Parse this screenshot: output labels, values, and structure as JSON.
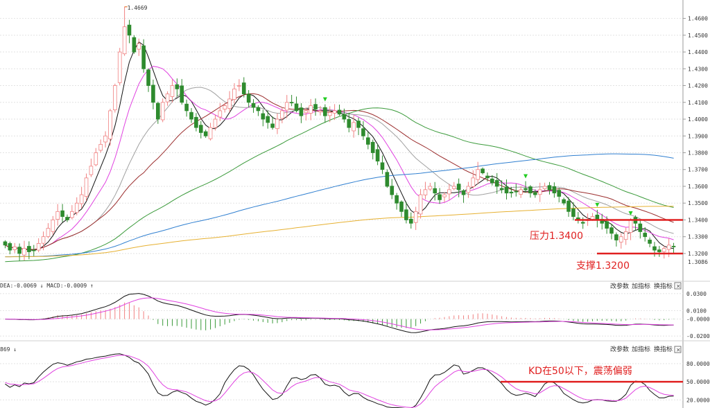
{
  "colors": {
    "up": "#f08080",
    "down": "#2e8b2e",
    "ma5": "#111111",
    "ma10": "#e040e0",
    "ma20": "#a0a0a0",
    "ma30": "#9b2d2d",
    "ma60": "#3a9a3a",
    "ma120": "#2f7fd0",
    "ma250": "#e6b030",
    "resistance_line": "#e02020",
    "grid": "#e2e2e2",
    "macd_pos": "#f08080",
    "macd_neg": "#3a9a3a",
    "dif": "#111111",
    "dea": "#e040e0",
    "k": "#111111",
    "d": "#e040e0",
    "annotation": "#e02020",
    "marker_arrow": "#22cc22",
    "high_label": "#e05a00"
  },
  "icons": {
    "settings_close": "close-box-icon",
    "dea_direction": "down-arrow-icon",
    "macd_direction": "up-arrow-icon",
    "kd_direction": "down-arrow-icon",
    "signal_marker": "green-down-arrow-icon"
  },
  "main": {
    "high_label": "1.4669",
    "last_tick_label": "1.3086"
  },
  "annotations": {
    "resistance": "压力1.3400",
    "support": "支撑1.3200",
    "kd_note": "KD在50以下，震荡偏弱"
  },
  "macd_panel": {
    "header": "DEA:-0.0069 ↓  MACD:-0.0009 ↑",
    "buttons": [
      "改参数",
      "加指标",
      "换指标"
    ],
    "ticks": [
      "0.0300",
      "0.0100",
      "-0.0000",
      "-0.0200"
    ]
  },
  "kd_panel": {
    "header": "869 ↓",
    "buttons": [
      "改参数",
      "加指标",
      "换指标"
    ],
    "ticks": [
      "80.0000",
      "50.0000",
      "20.0000"
    ]
  },
  "chart_data": [
    {
      "type": "candlestick",
      "title": "",
      "ylim": [
        1.3086,
        1.4669
      ],
      "yticks": [
        1.46,
        1.45,
        1.44,
        1.43,
        1.42,
        1.41,
        1.4,
        1.39,
        1.38,
        1.37,
        1.36,
        1.35,
        1.34,
        1.33,
        1.32
      ],
      "ytick_labels": [
        "1.4600",
        "1.4500",
        "1.4400",
        "1.4300",
        "1.4200",
        "1.4100",
        "1.4000",
        "1.3900",
        "1.3800",
        "1.3700",
        "1.3600",
        "1.3500",
        "1.3400",
        "1.3300",
        "1.3200"
      ],
      "close": [
        1.325,
        1.322,
        1.324,
        1.32,
        1.323,
        1.321,
        1.322,
        1.326,
        1.33,
        1.335,
        1.34,
        1.345,
        1.342,
        1.34,
        1.345,
        1.35,
        1.355,
        1.365,
        1.372,
        1.38,
        1.385,
        1.39,
        1.405,
        1.42,
        1.44,
        1.455,
        1.45,
        1.44,
        1.445,
        1.43,
        1.42,
        1.41,
        1.4,
        1.41,
        1.415,
        1.42,
        1.418,
        1.41,
        1.405,
        1.4,
        1.395,
        1.392,
        1.39,
        1.395,
        1.4,
        1.405,
        1.408,
        1.412,
        1.418,
        1.42,
        1.415,
        1.41,
        1.407,
        1.405,
        1.4,
        1.398,
        1.395,
        1.4,
        1.405,
        1.41,
        1.41,
        1.405,
        1.402,
        1.405,
        1.408,
        1.406,
        1.405,
        1.402,
        1.404,
        1.405,
        1.403,
        1.4,
        1.395,
        1.398,
        1.395,
        1.39,
        1.385,
        1.38,
        1.375,
        1.37,
        1.36,
        1.355,
        1.35,
        1.345,
        1.34,
        1.338,
        1.345,
        1.355,
        1.358,
        1.36,
        1.356,
        1.352,
        1.355,
        1.358,
        1.36,
        1.358,
        1.355,
        1.36,
        1.365,
        1.37,
        1.368,
        1.365,
        1.362,
        1.36,
        1.358,
        1.356,
        1.356,
        1.357,
        1.358,
        1.358,
        1.356,
        1.355,
        1.358,
        1.36,
        1.358,
        1.356,
        1.354,
        1.35,
        1.345,
        1.342,
        1.34,
        1.338,
        1.34,
        1.342,
        1.34,
        1.338,
        1.335,
        1.332,
        1.328,
        1.33,
        1.333,
        1.34,
        1.338,
        1.333,
        1.33,
        1.326,
        1.322,
        1.321,
        1.323,
        1.325,
        1.324
      ],
      "ma_series": [
        "MA5",
        "MA10",
        "MA20",
        "MA30",
        "MA60",
        "MA120",
        "MA250"
      ],
      "level_lines": [
        {
          "label": "压力1.3400",
          "value": 1.34
        },
        {
          "label": "支撑1.3200",
          "value": 1.32
        }
      ],
      "grid": true
    },
    {
      "type": "bar+line",
      "title": "",
      "ylim": [
        -0.024,
        0.034
      ],
      "yticks": [
        0.03,
        0.01,
        0.0,
        -0.02
      ],
      "series": [
        {
          "name": "DEA",
          "value": -0.0069
        },
        {
          "name": "MACD",
          "value": -0.0009
        }
      ]
    },
    {
      "type": "line",
      "title": "",
      "ylim": [
        10,
        95
      ],
      "yticks": [
        80,
        50,
        20
      ],
      "level_lines": [
        {
          "label": "KD在50以下，震荡偏弱",
          "value": 50
        }
      ]
    }
  ]
}
